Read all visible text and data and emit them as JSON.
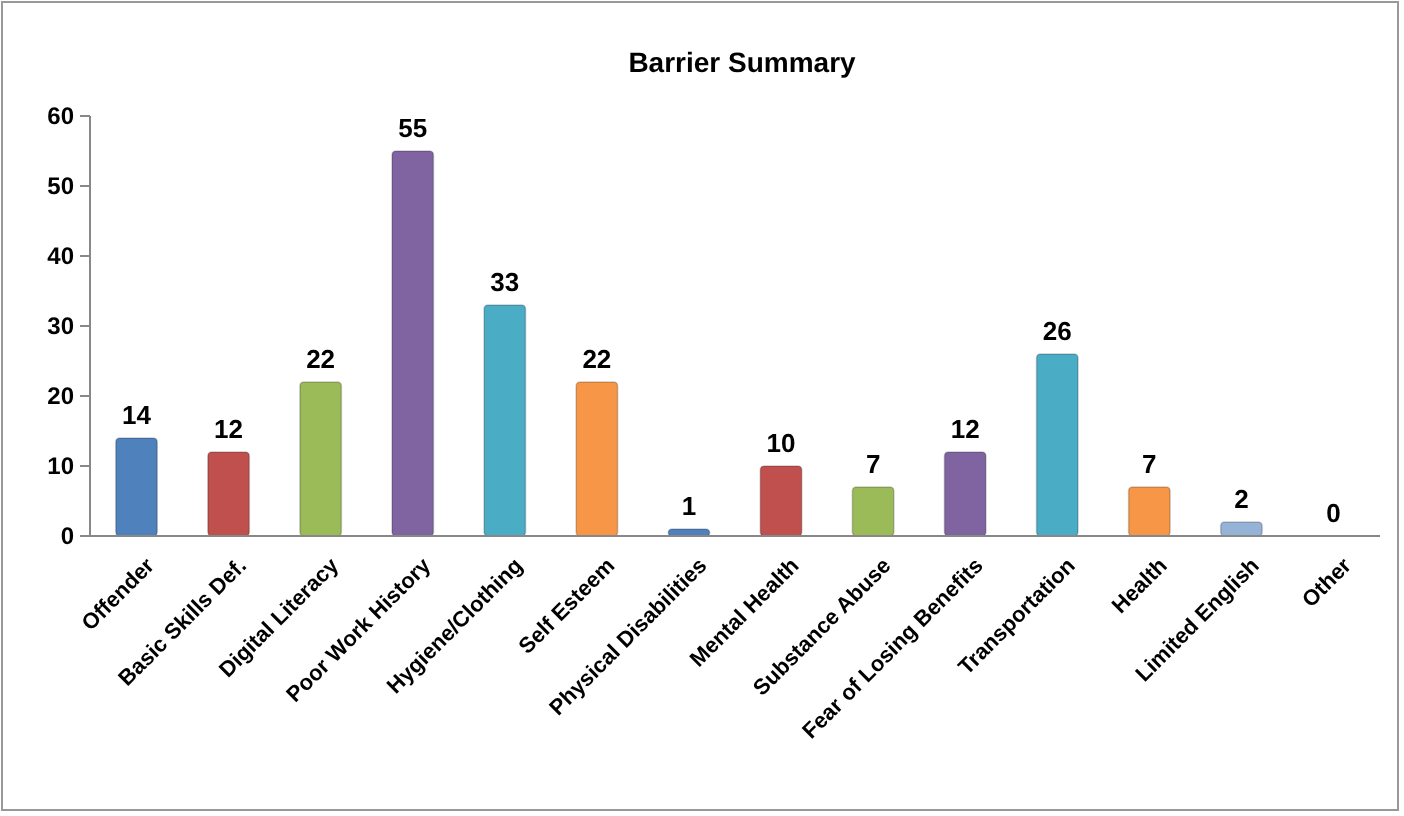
{
  "chart_data": {
    "type": "bar",
    "title": "Barrier Summary",
    "categories": [
      "Offender",
      "Basic Skills Def.",
      "Digital Literacy",
      "Poor Work History",
      "Hygiene/Clothing",
      "Self Esteem",
      "Physical Disabilities",
      "Mental Health",
      "Substance Abuse",
      "Fear of Losing Benefits",
      "Transportation",
      "Health",
      "Limited English",
      "Other"
    ],
    "values": [
      14,
      12,
      22,
      55,
      33,
      22,
      1,
      10,
      7,
      12,
      26,
      7,
      2,
      0
    ],
    "colors": [
      "#4f81bd",
      "#c0504d",
      "#9bbb59",
      "#8064a2",
      "#4bacc6",
      "#f79646",
      "#4f81bd",
      "#c0504d",
      "#9bbb59",
      "#8064a2",
      "#4bacc6",
      "#f79646",
      "#95b3d7",
      "#d99694"
    ],
    "ylim": [
      0,
      60
    ],
    "yticks": [
      0,
      10,
      20,
      30,
      40,
      50,
      60
    ],
    "data_labels": true
  }
}
